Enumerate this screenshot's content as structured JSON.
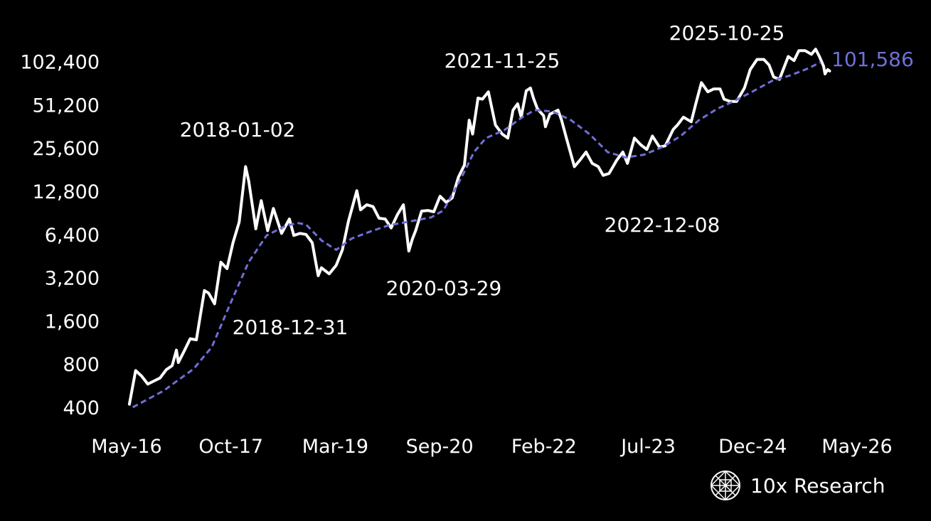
{
  "chart_data": {
    "type": "line",
    "y_scale": "log2",
    "ylim": [
      400,
      131072
    ],
    "xlim": [
      "2016-05-01",
      "2026-05-01"
    ],
    "y_ticks": [
      "400",
      "800",
      "1,600",
      "3,200",
      "6,400",
      "12,800",
      "25,600",
      "51,200",
      "102,400"
    ],
    "x_ticks": [
      "May-16",
      "Oct-17",
      "Mar-19",
      "Sep-20",
      "Feb-22",
      "Jul-23",
      "Dec-24",
      "May-26"
    ],
    "colors": {
      "price": "#ffffff",
      "moving_average": "#6f6fd8",
      "background": "#000000"
    },
    "last_value_label": "101,586",
    "annotations": [
      {
        "text": "2018-01-02",
        "date": "2018-01-02"
      },
      {
        "text": "2018-12-31",
        "date": "2018-12-31"
      },
      {
        "text": "2020-03-29",
        "date": "2020-03-29"
      },
      {
        "text": "2021-11-25",
        "date": "2021-11-25"
      },
      {
        "text": "2022-12-08",
        "date": "2022-12-08"
      },
      {
        "text": "2025-10-25",
        "date": "2025-10-25"
      }
    ],
    "series": [
      {
        "style": "solid",
        "points": [
          [
            "2016-05-15",
            420
          ],
          [
            "2016-06-15",
            720
          ],
          [
            "2016-07-15",
            660
          ],
          [
            "2016-08-15",
            580
          ],
          [
            "2016-09-15",
            610
          ],
          [
            "2016-10-15",
            640
          ],
          [
            "2016-11-15",
            730
          ],
          [
            "2016-12-15",
            780
          ],
          [
            "2017-01-05",
            1000
          ],
          [
            "2017-01-15",
            820
          ],
          [
            "2017-02-15",
            1000
          ],
          [
            "2017-03-15",
            1200
          ],
          [
            "2017-04-15",
            1180
          ],
          [
            "2017-05-25",
            2600
          ],
          [
            "2017-06-15",
            2500
          ],
          [
            "2017-07-15",
            2100
          ],
          [
            "2017-08-15",
            4100
          ],
          [
            "2017-09-15",
            3700
          ],
          [
            "2017-10-15",
            5600
          ],
          [
            "2017-11-15",
            7800
          ],
          [
            "2017-12-17",
            19000
          ],
          [
            "2018-01-02",
            15000
          ],
          [
            "2018-02-06",
            7000
          ],
          [
            "2018-03-05",
            11000
          ],
          [
            "2018-04-06",
            6800
          ],
          [
            "2018-05-05",
            9700
          ],
          [
            "2018-06-15",
            6500
          ],
          [
            "2018-07-24",
            8200
          ],
          [
            "2018-08-15",
            6300
          ],
          [
            "2018-09-15",
            6500
          ],
          [
            "2018-10-15",
            6400
          ],
          [
            "2018-11-15",
            5600
          ],
          [
            "2018-12-15",
            3300
          ],
          [
            "2018-12-31",
            3750
          ],
          [
            "2019-02-08",
            3400
          ],
          [
            "2019-03-15",
            3900
          ],
          [
            "2019-04-15",
            5000
          ],
          [
            "2019-05-15",
            7900
          ],
          [
            "2019-06-26",
            12900
          ],
          [
            "2019-07-15",
            9500
          ],
          [
            "2019-08-15",
            10300
          ],
          [
            "2019-09-15",
            10000
          ],
          [
            "2019-10-15",
            8300
          ],
          [
            "2019-11-15",
            8200
          ],
          [
            "2019-12-15",
            7100
          ],
          [
            "2020-01-15",
            8800
          ],
          [
            "2020-02-14",
            10300
          ],
          [
            "2020-03-12",
            4900
          ],
          [
            "2020-03-29",
            5900
          ],
          [
            "2020-04-15",
            6800
          ],
          [
            "2020-05-15",
            9300
          ],
          [
            "2020-06-15",
            9400
          ],
          [
            "2020-07-15",
            9200
          ],
          [
            "2020-08-15",
            11800
          ],
          [
            "2020-09-15",
            10700
          ],
          [
            "2020-10-15",
            11500
          ],
          [
            "2020-11-15",
            16000
          ],
          [
            "2020-12-15",
            19500
          ],
          [
            "2021-01-08",
            40000
          ],
          [
            "2021-01-25",
            32000
          ],
          [
            "2021-02-21",
            57000
          ],
          [
            "2021-03-15",
            56000
          ],
          [
            "2021-04-14",
            63000
          ],
          [
            "2021-05-19",
            37000
          ],
          [
            "2021-06-22",
            32000
          ],
          [
            "2021-07-20",
            30000
          ],
          [
            "2021-08-15",
            47000
          ],
          [
            "2021-09-07",
            52000
          ],
          [
            "2021-09-25",
            42000
          ],
          [
            "2021-10-20",
            64000
          ],
          [
            "2021-11-10",
            67000
          ],
          [
            "2021-11-25",
            57000
          ],
          [
            "2021-12-15",
            48000
          ],
          [
            "2022-01-15",
            43000
          ],
          [
            "2022-01-24",
            36000
          ],
          [
            "2022-02-15",
            44000
          ],
          [
            "2022-03-28",
            47000
          ],
          [
            "2022-04-15",
            40000
          ],
          [
            "2022-05-12",
            29000
          ],
          [
            "2022-06-18",
            19000
          ],
          [
            "2022-07-15",
            21000
          ],
          [
            "2022-08-15",
            24000
          ],
          [
            "2022-09-15",
            20000
          ],
          [
            "2022-10-15",
            19000
          ],
          [
            "2022-11-09",
            16500
          ],
          [
            "2022-12-08",
            17000
          ],
          [
            "2023-01-15",
            21000
          ],
          [
            "2023-02-15",
            24000
          ],
          [
            "2023-03-10",
            20000
          ],
          [
            "2023-04-14",
            30000
          ],
          [
            "2023-05-15",
            27000
          ],
          [
            "2023-06-15",
            25000
          ],
          [
            "2023-07-13",
            31000
          ],
          [
            "2023-08-17",
            26000
          ],
          [
            "2023-09-15",
            26500
          ],
          [
            "2023-10-25",
            34500
          ],
          [
            "2023-11-15",
            37000
          ],
          [
            "2023-12-15",
            42000
          ],
          [
            "2024-01-23",
            39000
          ],
          [
            "2024-02-15",
            52000
          ],
          [
            "2024-03-14",
            73000
          ],
          [
            "2024-04-15",
            63000
          ],
          [
            "2024-05-15",
            66000
          ],
          [
            "2024-06-15",
            66000
          ],
          [
            "2024-07-05",
            56000
          ],
          [
            "2024-08-05",
            54000
          ],
          [
            "2024-09-06",
            54000
          ],
          [
            "2024-10-15",
            67000
          ],
          [
            "2024-11-13",
            90000
          ],
          [
            "2024-12-17",
            106000
          ],
          [
            "2025-01-20",
            106000
          ],
          [
            "2025-02-15",
            97000
          ],
          [
            "2025-03-10",
            80000
          ],
          [
            "2025-04-08",
            77000
          ],
          [
            "2025-05-22",
            111000
          ],
          [
            "2025-06-20",
            104000
          ],
          [
            "2025-07-14",
            122000
          ],
          [
            "2025-08-14",
            122000
          ],
          [
            "2025-09-15",
            115000
          ],
          [
            "2025-10-06",
            125000
          ],
          [
            "2025-10-25",
            111000
          ],
          [
            "2025-11-15",
            95000
          ],
          [
            "2025-11-22",
            84000
          ],
          [
            "2025-12-05",
            90000
          ],
          [
            "2025-12-15",
            88000
          ]
        ]
      },
      {
        "style": "dashed",
        "points": [
          [
            "2016-06-01",
            400
          ],
          [
            "2016-11-01",
            520
          ],
          [
            "2017-04-01",
            740
          ],
          [
            "2017-07-01",
            1050
          ],
          [
            "2017-10-01",
            2100
          ],
          [
            "2018-01-01",
            4100
          ],
          [
            "2018-04-01",
            6300
          ],
          [
            "2018-07-01",
            7300
          ],
          [
            "2018-09-01",
            7700
          ],
          [
            "2018-10-15",
            7500
          ],
          [
            "2019-01-01",
            5800
          ],
          [
            "2019-03-15",
            5000
          ],
          [
            "2019-06-01",
            6000
          ],
          [
            "2019-09-01",
            6700
          ],
          [
            "2019-12-01",
            7400
          ],
          [
            "2020-03-01",
            7800
          ],
          [
            "2020-07-01",
            8400
          ],
          [
            "2020-09-01",
            9400
          ],
          [
            "2020-12-01",
            16000
          ],
          [
            "2021-02-01",
            24000
          ],
          [
            "2021-04-01",
            30000
          ],
          [
            "2021-07-01",
            34000
          ],
          [
            "2021-10-01",
            42000
          ],
          [
            "2021-12-01",
            47000
          ],
          [
            "2022-03-01",
            46000
          ],
          [
            "2022-06-01",
            40000
          ],
          [
            "2022-09-01",
            32000
          ],
          [
            "2022-12-01",
            24000
          ],
          [
            "2023-03-01",
            22000
          ],
          [
            "2023-06-01",
            23000
          ],
          [
            "2023-09-01",
            26000
          ],
          [
            "2023-12-01",
            31000
          ],
          [
            "2024-03-01",
            40000
          ],
          [
            "2024-06-01",
            48000
          ],
          [
            "2024-09-01",
            55000
          ],
          [
            "2024-12-01",
            64000
          ],
          [
            "2025-03-01",
            75000
          ],
          [
            "2025-06-01",
            82000
          ],
          [
            "2025-09-01",
            92000
          ],
          [
            "2025-11-01",
            101586
          ]
        ]
      }
    ]
  },
  "brand": {
    "name": "10x Research",
    "logo_icon": "globe-mesh-icon"
  }
}
